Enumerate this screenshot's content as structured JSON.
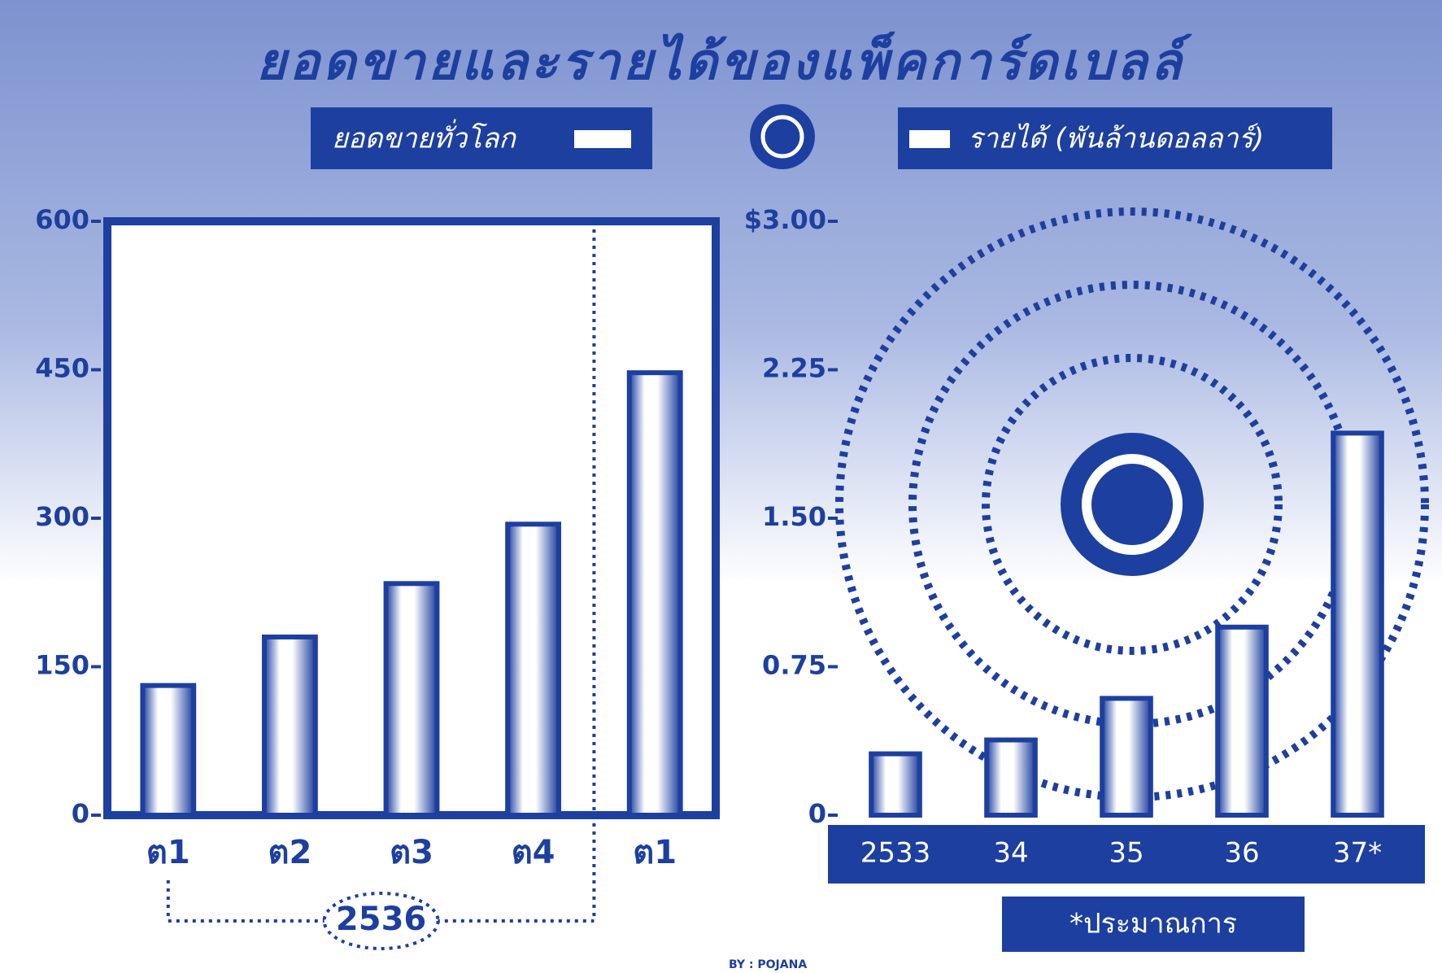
{
  "title": "ยอดขายและรายได้ของแพ็คการ์ดเบลล์",
  "legend": [
    "ยอดขายทั่วโลก",
    "รายได้ (พันล้านดอลลาร์)"
  ],
  "credit": "BY : POJANA",
  "chart_data": [
    {
      "type": "bar",
      "categories": [
        "ต1",
        "ต2",
        "ต3",
        "ต4",
        "ต1"
      ],
      "values": [
        131,
        180,
        234,
        294,
        447
      ],
      "group_label": "2536",
      "color": "#1d3f9f",
      "ylim": [
        0,
        600
      ],
      "yticks": [
        0,
        150,
        300,
        450,
        600
      ]
    },
    {
      "type": "bar",
      "categories": [
        "2533",
        "34",
        "35",
        "36",
        "37*"
      ],
      "values": [
        0.31,
        0.38,
        0.59,
        0.95,
        1.93
      ],
      "note": "*ประมาณการ",
      "color": "#1d3f9f",
      "ylim": [
        0,
        3
      ],
      "yticks": [
        0,
        {
          "value": 0.75,
          "label": "0.75"
        },
        {
          "value": 1.5,
          "label": "1.50"
        },
        {
          "value": 2.25,
          "label": "2.25"
        },
        {
          "value": 3,
          "label": "$3.00"
        }
      ]
    }
  ]
}
